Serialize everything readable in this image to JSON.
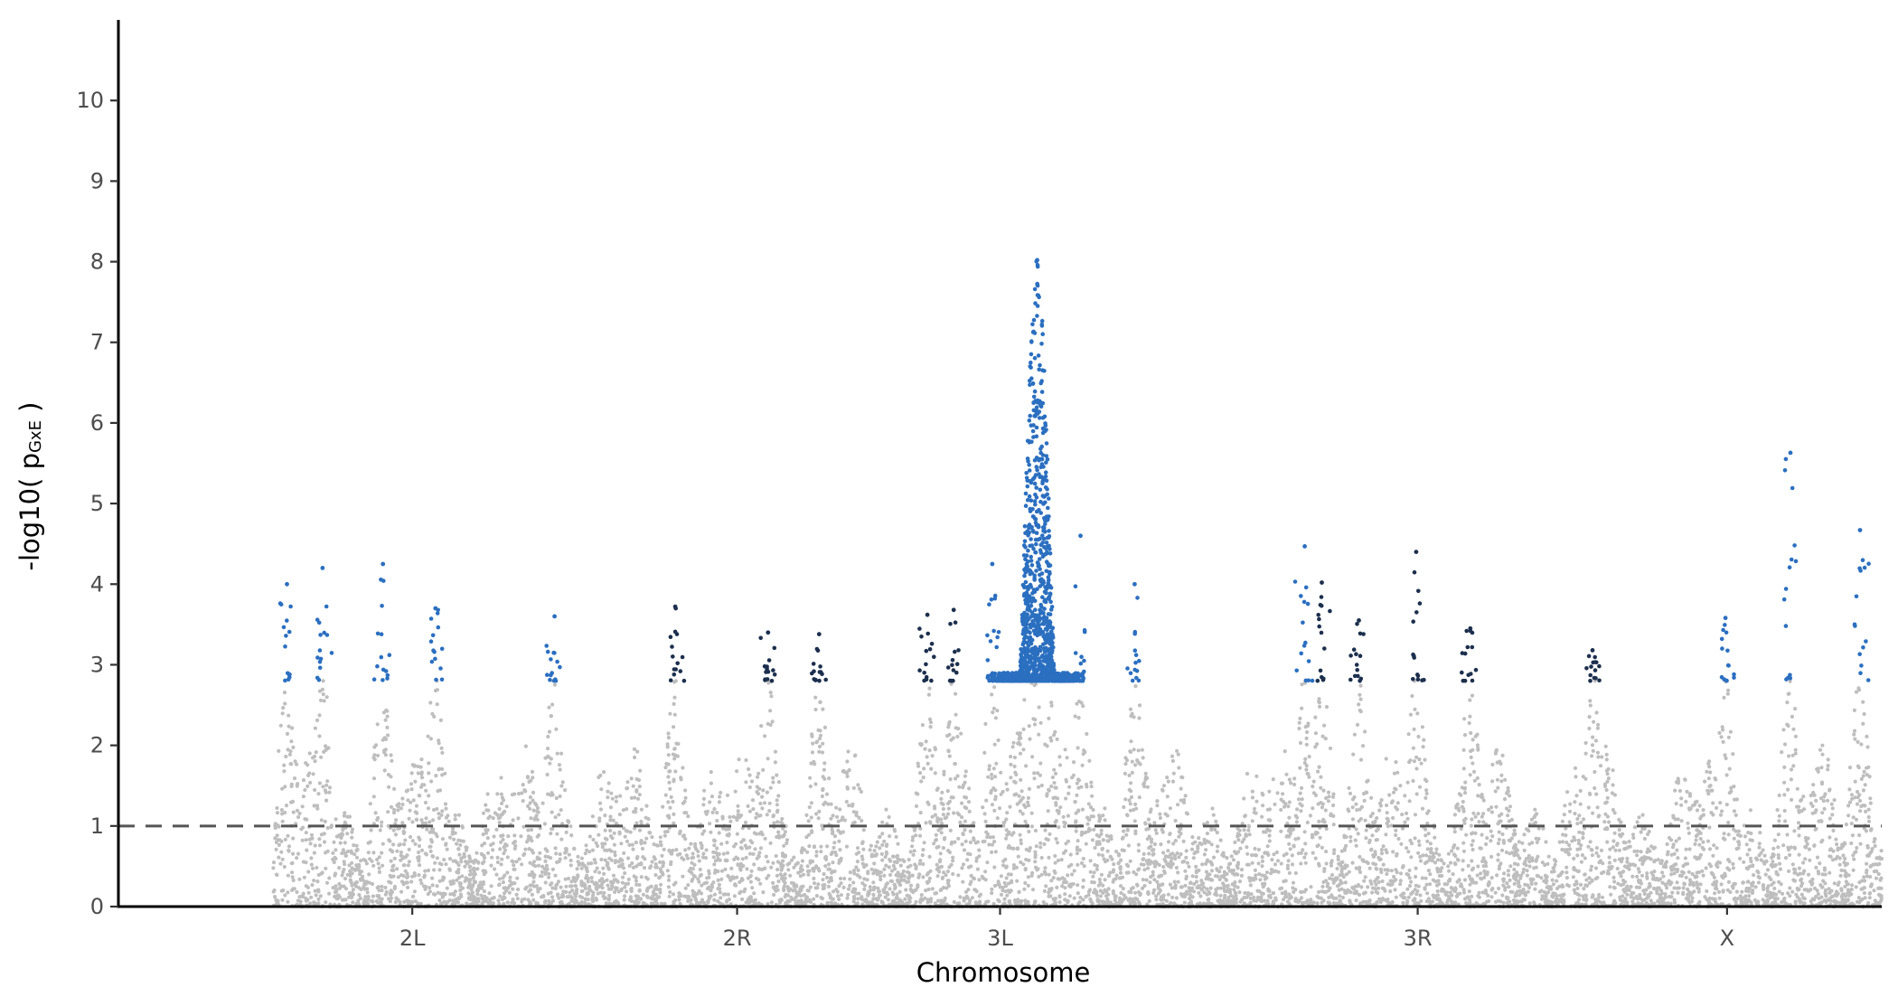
{
  "chart_data": {
    "type": "scatter",
    "subtype": "manhattan",
    "xlabel": "Chromosome",
    "ylabel": {
      "prefix": "-log10( p",
      "subscript": "GxE",
      "suffix": " )"
    },
    "ylim": [
      0,
      11
    ],
    "yticks": [
      0,
      1,
      2,
      3,
      4,
      5,
      6,
      7,
      8,
      9,
      10
    ],
    "x_range_mb": [
      -10,
      104
    ],
    "threshold_line": {
      "y": 1,
      "style": "dashed"
    },
    "significance_cutoff": 2.8,
    "colors": {
      "background_points": "#bebebe",
      "significant_blue": "#2b6fc0",
      "significant_navy": "#1c2f4d",
      "threshold": "#555555"
    },
    "chromosomes": [
      {
        "name": "2L",
        "start_mb": 0,
        "end_mb": 23.5,
        "label_mb": 9,
        "sig_color": "blue"
      },
      {
        "name": "2R",
        "start_mb": 23.5,
        "end_mb": 44.5,
        "label_mb": 30,
        "sig_color": "navy"
      },
      {
        "name": "3L",
        "start_mb": 44.5,
        "end_mb": 67.0,
        "label_mb": 47,
        "sig_color": "blue"
      },
      {
        "name": "3R",
        "start_mb": 67.0,
        "end_mb": 86.0,
        "label_mb": 74,
        "sig_color": "navy"
      },
      {
        "name": "X",
        "start_mb": 86.0,
        "end_mb": 104.0,
        "label_mb": 94,
        "sig_color": "blue"
      }
    ],
    "peaks": [
      {
        "chrom": "2L",
        "position_mb": 0.9,
        "max_y": 4.0
      },
      {
        "chrom": "2L",
        "position_mb": 3.2,
        "max_y": 4.2
      },
      {
        "chrom": "2L",
        "position_mb": 7.1,
        "max_y": 4.25
      },
      {
        "chrom": "2L",
        "position_mb": 10.5,
        "max_y": 3.7
      },
      {
        "chrom": "2L",
        "position_mb": 18.2,
        "max_y": 3.6
      },
      {
        "chrom": "2R",
        "position_mb": 26.0,
        "max_y": 3.72
      },
      {
        "chrom": "2R",
        "position_mb": 32.0,
        "max_y": 3.4
      },
      {
        "chrom": "2R",
        "position_mb": 35.3,
        "max_y": 3.38
      },
      {
        "chrom": "3L",
        "position_mb": 42.3,
        "max_y": 3.62
      },
      {
        "chrom": "3L",
        "position_mb": 44.0,
        "max_y": 3.68
      },
      {
        "chrom": "3L",
        "position_mb": 46.5,
        "max_y": 4.25
      },
      {
        "chrom": "3L",
        "position_mb": 49.4,
        "max_y": 8.02
      },
      {
        "chrom": "3L",
        "position_mb": 52.2,
        "max_y": 4.6
      },
      {
        "chrom": "3L",
        "position_mb": 55.7,
        "max_y": 4.0
      },
      {
        "chrom": "3R",
        "position_mb": 66.7,
        "max_y": 4.47
      },
      {
        "chrom": "3R",
        "position_mb": 67.8,
        "max_y": 4.02
      },
      {
        "chrom": "3R",
        "position_mb": 70.2,
        "max_y": 3.55
      },
      {
        "chrom": "3R",
        "position_mb": 73.9,
        "max_y": 4.4
      },
      {
        "chrom": "3R",
        "position_mb": 77.4,
        "max_y": 3.45
      },
      {
        "chrom": "X",
        "position_mb": 85.3,
        "max_y": 3.18
      },
      {
        "chrom": "X",
        "position_mb": 93.9,
        "max_y": 3.58
      },
      {
        "chrom": "X",
        "position_mb": 98.1,
        "max_y": 5.63
      },
      {
        "chrom": "X",
        "position_mb": 102.6,
        "max_y": 4.67
      }
    ]
  }
}
